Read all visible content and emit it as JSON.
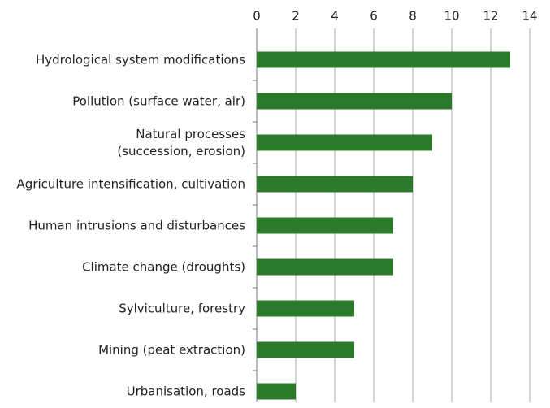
{
  "chart_data": {
    "type": "bar",
    "orientation": "horizontal",
    "categories": [
      "Hydrological system modifications",
      "Pollution (surface water, air)",
      "Natural processes\n(succession, erosion)",
      "Agriculture intensification, cultivation",
      "Human intrusions and disturbances",
      "Climate change (droughts)",
      "Sylviculture, forestry",
      "Mining (peat extraction)",
      "Urbanisation, roads"
    ],
    "values": [
      13,
      10,
      9,
      8,
      7,
      7,
      5,
      5,
      2
    ],
    "color": "#2b7a2b",
    "xlim": [
      0,
      14
    ],
    "xticks": [
      0,
      2,
      4,
      6,
      8,
      10,
      12,
      14
    ],
    "grid": true
  }
}
